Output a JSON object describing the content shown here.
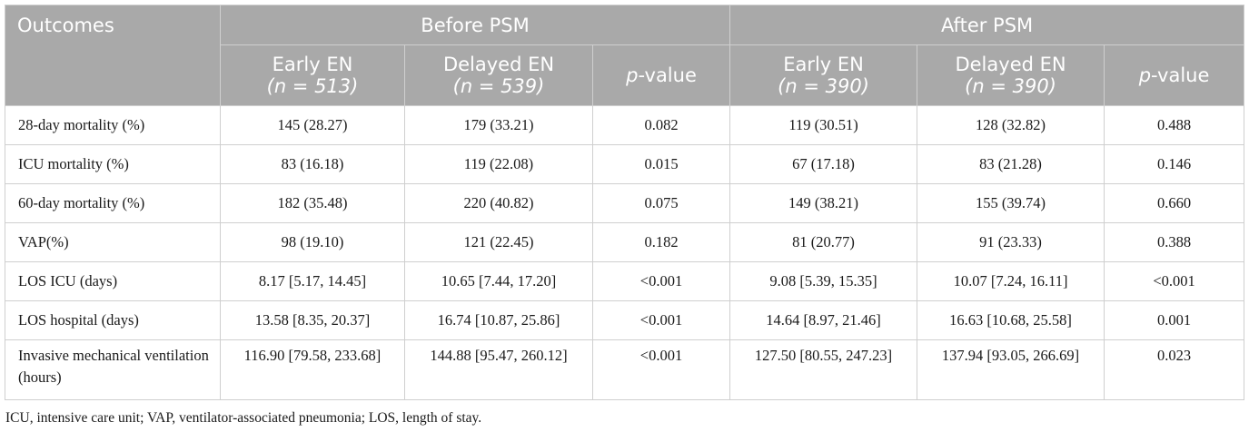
{
  "header": {
    "outcomes": "Outcomes",
    "before_psm": "Before PSM",
    "after_psm": "After PSM",
    "early_en": "Early EN",
    "delayed_en": "Delayed EN",
    "p_value_italic": "p",
    "p_value_rest": "-value",
    "n_early_before": "(n = 513)",
    "n_delayed_before": "(n = 539)",
    "n_early_after": "(n = 390)",
    "n_delayed_after": "(n = 390)"
  },
  "rows": [
    {
      "label": "28-day mortality (%)",
      "cells": [
        "145 (28.27)",
        "179 (33.21)",
        "0.082",
        "119 (30.51)",
        "128 (32.82)",
        "0.488"
      ]
    },
    {
      "label": "ICU mortality (%)",
      "cells": [
        "83 (16.18)",
        "119 (22.08)",
        "0.015",
        "67 (17.18)",
        "83 (21.28)",
        "0.146"
      ]
    },
    {
      "label": "60-day mortality (%)",
      "cells": [
        "182 (35.48)",
        "220 (40.82)",
        "0.075",
        "149 (38.21)",
        "155 (39.74)",
        "0.660"
      ]
    },
    {
      "label": "VAP(%)",
      "cells": [
        "98 (19.10)",
        "121 (22.45)",
        "0.182",
        "81 (20.77)",
        "91 (23.33)",
        "0.388"
      ]
    },
    {
      "label": "LOS ICU (days)",
      "cells": [
        "8.17 [5.17, 14.45]",
        "10.65 [7.44, 17.20]",
        "<0.001",
        "9.08 [5.39, 15.35]",
        "10.07 [7.24, 16.11]",
        "<0.001"
      ]
    },
    {
      "label": "LOS hospital (days)",
      "cells": [
        "13.58 [8.35, 20.37]",
        "16.74 [10.87, 25.86]",
        "<0.001",
        "14.64 [8.97, 21.46]",
        "16.63 [10.68, 25.58]",
        "0.001"
      ]
    },
    {
      "label": "Invasive mechanical ventilation (hours)",
      "cells": [
        "116.90 [79.58, 233.68]",
        "144.88 [95.47, 260.12]",
        "<0.001",
        "127.50 [80.55, 247.23]",
        "137.94 [93.05, 266.69]",
        "0.023"
      ]
    }
  ],
  "footnote": "ICU, intensive care unit; VAP, ventilator-associated pneumonia; LOS, length of stay."
}
